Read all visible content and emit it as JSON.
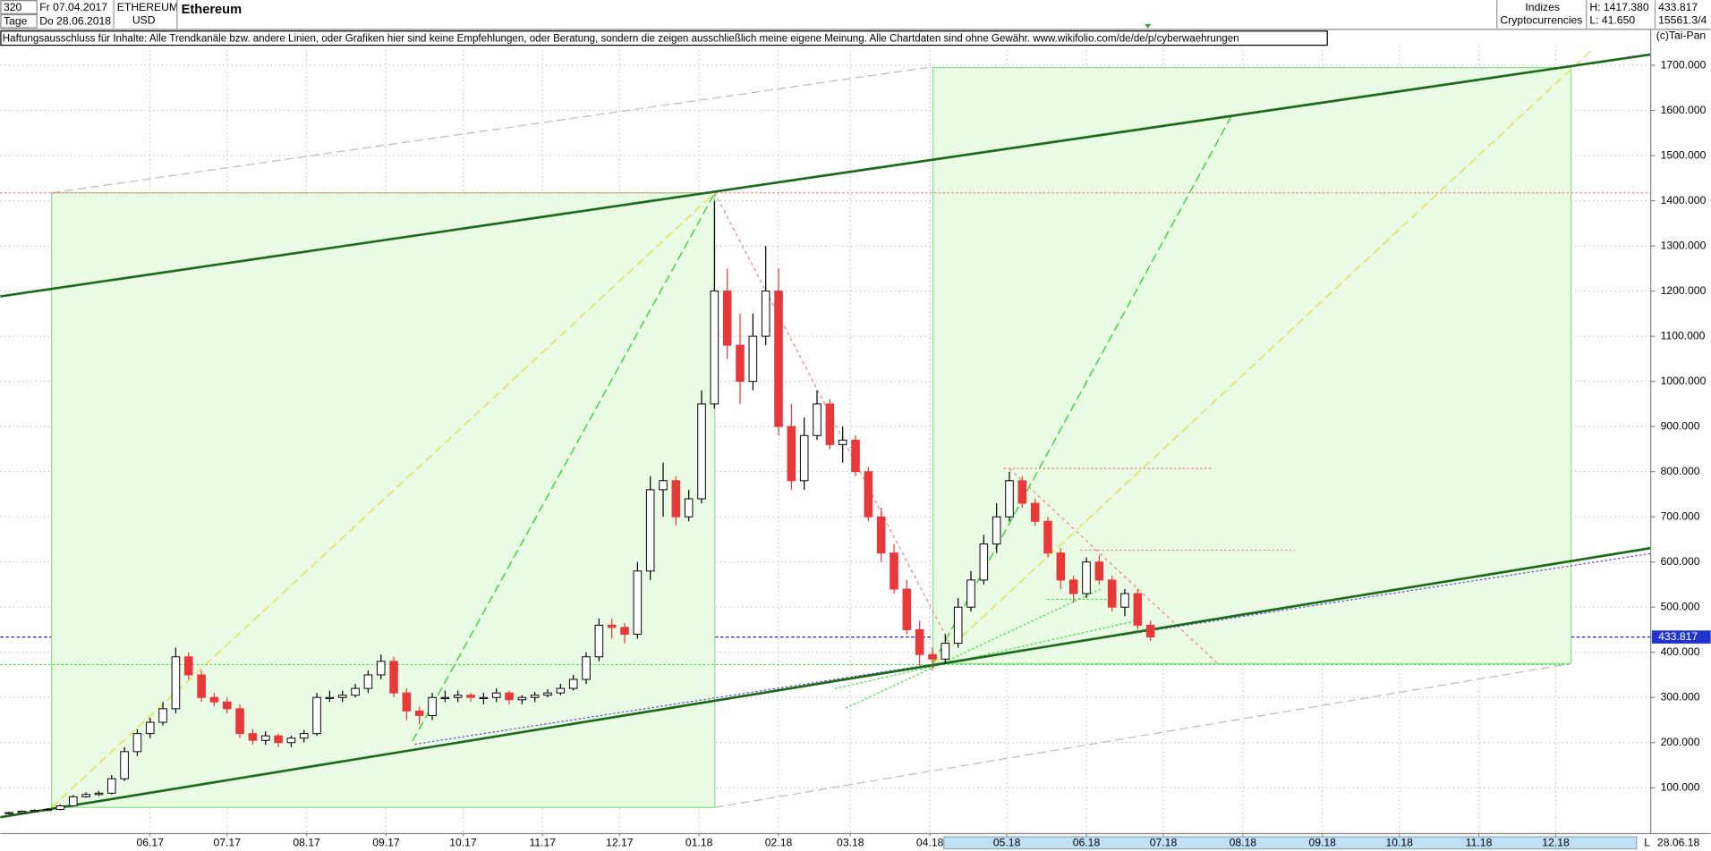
{
  "header": {
    "count": "320",
    "from": "Fr 07.04.2017",
    "unit": "Tage",
    "to": "Do 28.06.2018",
    "symbol": "ETHEREUM",
    "currency": "USD",
    "name": "Ethereum",
    "group": "Indizes",
    "subgroup": "Cryptocurrencies",
    "high": "H: 1417.380",
    "low": "L: 41.650",
    "last": "433.817",
    "id": "15561.3/4",
    "copyright": "(c)Tai-Pan",
    "disclaimer": "Haftungsausschluss für Inhalte: Alle Trendkanäle bzw. andere Linien, oder Grafiken hier sind keine Empfehlungen, oder Beratung, sondern die zeigen ausschließlich meine eigene Meinung. Alle Chartdaten sind ohne Gewähr.  www.wikifolio.com/de/de/p/cyberwaehrungen",
    "end_date": "28.06.18",
    "scale_mode": "L"
  },
  "chart_data": {
    "type": "candlestick",
    "last_value": 433.817,
    "x": [
      0,
      5,
      10,
      15,
      20,
      25,
      30,
      35,
      40,
      45,
      50,
      55,
      60,
      65,
      70,
      75,
      80,
      85,
      90,
      95,
      100,
      105,
      110,
      115,
      120,
      125,
      130,
      135,
      140,
      145,
      150,
      155,
      160,
      165,
      170,
      175,
      180,
      185,
      190,
      195,
      200,
      205,
      210,
      215,
      220,
      225,
      230,
      235,
      240,
      245,
      250,
      255,
      260,
      265,
      270,
      275,
      280,
      285,
      290,
      295,
      300,
      305,
      310,
      315,
      320,
      325,
      330,
      335,
      340,
      345,
      350,
      355,
      360,
      365,
      370,
      375,
      380,
      385,
      390,
      395,
      400,
      405,
      410,
      415,
      420,
      425,
      430,
      435,
      440,
      445
    ],
    "open": [
      43,
      45,
      48,
      50,
      52,
      60,
      80,
      85,
      88,
      120,
      180,
      220,
      245,
      275,
      390,
      350,
      300,
      290,
      275,
      220,
      205,
      215,
      200,
      210,
      220,
      300,
      300,
      305,
      320,
      350,
      380,
      310,
      270,
      260,
      300,
      300,
      305,
      300,
      300,
      310,
      295,
      300,
      305,
      310,
      320,
      340,
      390,
      460,
      455,
      440,
      580,
      760,
      780,
      700,
      740,
      950,
      1200,
      1080,
      1000,
      1100,
      1200,
      900,
      780,
      880,
      950,
      860,
      870,
      800,
      700,
      620,
      540,
      450,
      395,
      385,
      420,
      500,
      560,
      640,
      700,
      780,
      730,
      690,
      620,
      560,
      530,
      600,
      560,
      500,
      530,
      460
    ],
    "high": [
      47,
      50,
      52,
      55,
      63,
      84,
      90,
      93,
      128,
      190,
      230,
      255,
      290,
      410,
      400,
      360,
      310,
      300,
      285,
      230,
      225,
      220,
      215,
      228,
      310,
      315,
      315,
      330,
      360,
      395,
      390,
      320,
      280,
      310,
      315,
      315,
      310,
      310,
      320,
      315,
      305,
      312,
      318,
      330,
      350,
      400,
      475,
      475,
      465,
      600,
      790,
      820,
      790,
      760,
      980,
      1400,
      1250,
      1150,
      1150,
      1300,
      1250,
      950,
      920,
      980,
      960,
      900,
      880,
      810,
      720,
      640,
      560,
      470,
      410,
      440,
      520,
      580,
      660,
      730,
      800,
      790,
      740,
      700,
      630,
      570,
      610,
      615,
      570,
      540,
      540,
      470
    ],
    "low": [
      41,
      43,
      46,
      48,
      50,
      58,
      78,
      82,
      85,
      115,
      170,
      210,
      238,
      265,
      340,
      290,
      280,
      265,
      210,
      195,
      195,
      190,
      190,
      200,
      215,
      290,
      290,
      300,
      310,
      340,
      300,
      250,
      240,
      250,
      290,
      290,
      290,
      285,
      290,
      285,
      285,
      290,
      300,
      305,
      315,
      330,
      380,
      430,
      420,
      430,
      560,
      700,
      680,
      690,
      730,
      940,
      1050,
      950,
      980,
      1080,
      880,
      760,
      760,
      870,
      850,
      820,
      790,
      690,
      600,
      530,
      440,
      370,
      360,
      375,
      410,
      490,
      550,
      620,
      690,
      720,
      680,
      610,
      540,
      510,
      520,
      550,
      490,
      480,
      450,
      425
    ],
    "close": [
      45,
      48,
      50,
      52,
      60,
      80,
      85,
      88,
      120,
      180,
      220,
      245,
      275,
      390,
      350,
      300,
      290,
      275,
      220,
      205,
      215,
      200,
      210,
      220,
      300,
      300,
      305,
      320,
      350,
      380,
      310,
      270,
      260,
      300,
      300,
      305,
      300,
      300,
      310,
      295,
      300,
      305,
      310,
      320,
      340,
      390,
      460,
      455,
      440,
      580,
      760,
      780,
      700,
      740,
      950,
      1200,
      1080,
      1000,
      1100,
      1200,
      900,
      780,
      880,
      950,
      860,
      870,
      800,
      700,
      620,
      540,
      450,
      395,
      385,
      420,
      500,
      560,
      640,
      700,
      780,
      730,
      690,
      620,
      560,
      530,
      600,
      560,
      500,
      530,
      460,
      434
    ],
    "up_color": "#000000",
    "down_color": "#e8383a",
    "xlim": [
      -3.4,
      640
    ],
    "xticks": [
      {
        "value": 55,
        "label": "06.17"
      },
      {
        "value": 85,
        "label": "07.17"
      },
      {
        "value": 116,
        "label": "08.17"
      },
      {
        "value": 147,
        "label": "09.17"
      },
      {
        "value": 177,
        "label": "10.17"
      },
      {
        "value": 208,
        "label": "11.17"
      },
      {
        "value": 238,
        "label": "12.17"
      },
      {
        "value": 269,
        "label": "01.18"
      },
      {
        "value": 300,
        "label": "02.18"
      },
      {
        "value": 328,
        "label": "03.18"
      },
      {
        "value": 359,
        "label": "04.18"
      },
      {
        "value": 389,
        "label": "05.18"
      },
      {
        "value": 420,
        "label": "06.18"
      },
      {
        "value": 450,
        "label": "07.18"
      },
      {
        "value": 481,
        "label": "08.18"
      },
      {
        "value": 512,
        "label": "09.18"
      },
      {
        "value": 542,
        "label": "10.18"
      },
      {
        "value": 573,
        "label": "11.18"
      },
      {
        "value": 603,
        "label": "12.18"
      }
    ],
    "ylim": [
      0,
      1750
    ],
    "yticks": [
      {
        "value": 100,
        "label": "100.000"
      },
      {
        "value": 200,
        "label": "200.000"
      },
      {
        "value": 300,
        "label": "300.000"
      },
      {
        "value": 400,
        "label": "400.000"
      },
      {
        "value": 500,
        "label": "500.000"
      },
      {
        "value": 600,
        "label": "600.000"
      },
      {
        "value": 700,
        "label": "700.000"
      },
      {
        "value": 800,
        "label": "800.000"
      },
      {
        "value": 900,
        "label": "900.000"
      },
      {
        "value": 1000,
        "label": "1000.000"
      },
      {
        "value": 1100,
        "label": "1100.000"
      },
      {
        "value": 1200,
        "label": "1200.000"
      },
      {
        "value": 1300,
        "label": "1300.000"
      },
      {
        "value": 1400,
        "label": "1400.000"
      },
      {
        "value": 1500,
        "label": "1500.000"
      },
      {
        "value": 1600,
        "label": "1600.000"
      },
      {
        "value": 1700,
        "label": "1700.000"
      }
    ],
    "grid": true
  }
}
